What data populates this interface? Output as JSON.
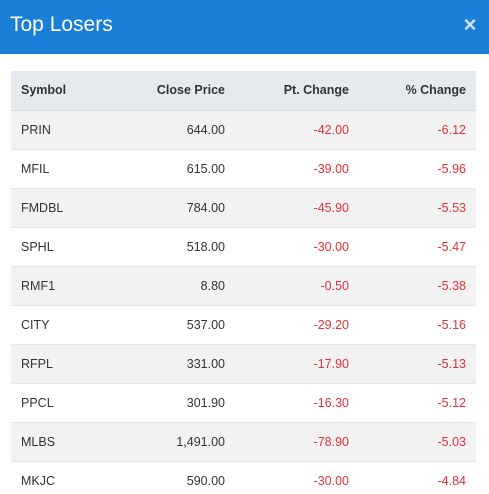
{
  "modal": {
    "title": "Top Losers",
    "close_label": "×"
  },
  "table": {
    "columns": [
      "Symbol",
      "Close Price",
      "Pt. Change",
      "% Change"
    ],
    "rows": [
      {
        "symbol": "PRIN",
        "close": "644.00",
        "pt_change": "-42.00",
        "pct_change": "-6.12"
      },
      {
        "symbol": "MFIL",
        "close": "615.00",
        "pt_change": "-39.00",
        "pct_change": "-5.96"
      },
      {
        "symbol": "FMDBL",
        "close": "784.00",
        "pt_change": "-45.90",
        "pct_change": "-5.53"
      },
      {
        "symbol": "SPHL",
        "close": "518.00",
        "pt_change": "-30.00",
        "pct_change": "-5.47"
      },
      {
        "symbol": "RMF1",
        "close": "8.80",
        "pt_change": "-0.50",
        "pct_change": "-5.38"
      },
      {
        "symbol": "CITY",
        "close": "537.00",
        "pt_change": "-29.20",
        "pct_change": "-5.16"
      },
      {
        "symbol": "RFPL",
        "close": "331.00",
        "pt_change": "-17.90",
        "pct_change": "-5.13"
      },
      {
        "symbol": "PPCL",
        "close": "301.90",
        "pt_change": "-16.30",
        "pct_change": "-5.12"
      },
      {
        "symbol": "MLBS",
        "close": "1,491.00",
        "pt_change": "-78.90",
        "pct_change": "-5.03"
      },
      {
        "symbol": "MKJC",
        "close": "590.00",
        "pt_change": "-30.00",
        "pct_change": "-4.84"
      }
    ]
  },
  "colors": {
    "header_bg": "#1a7fd6",
    "negative": "#e0313b",
    "table_header_bg": "#e6eaee",
    "row_stripe": "#f2f2f2"
  }
}
